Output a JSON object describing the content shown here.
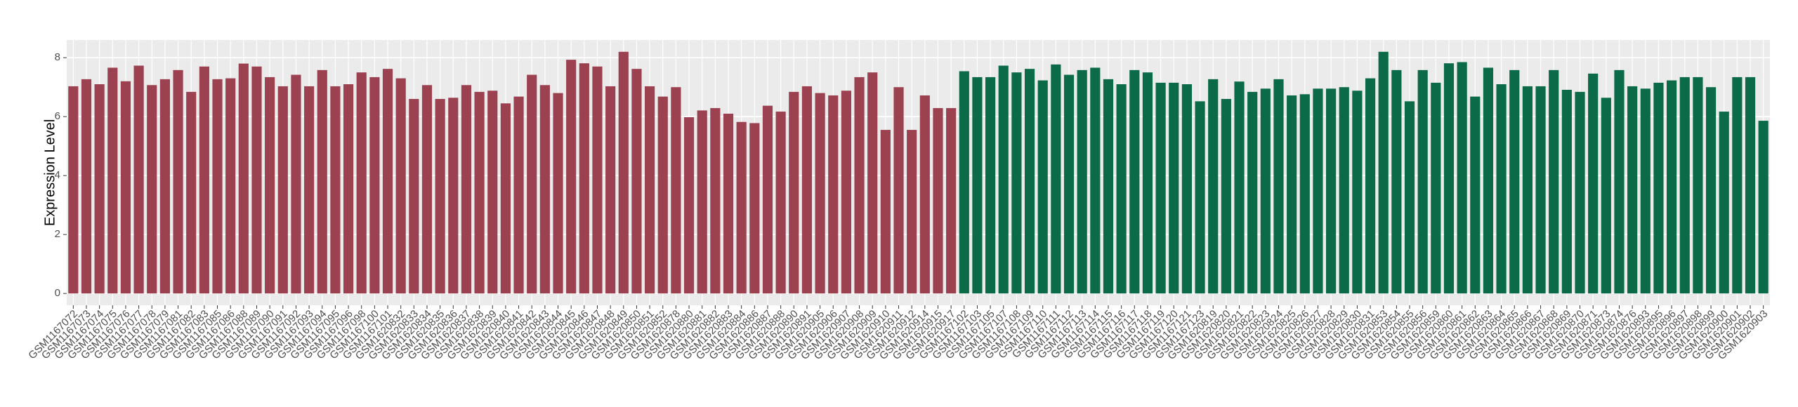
{
  "chart_data": {
    "type": "bar",
    "y_label": "Expression Level",
    "ylim": [
      -0.4,
      8.6
    ],
    "yticks": [
      0,
      2,
      4,
      6,
      8
    ],
    "grid": true,
    "series": [
      {
        "color": "#9b4150",
        "categories": [
          "GSM1167072",
          "GSM1167073",
          "GSM1167074",
          "GSM1167075",
          "GSM1167076",
          "GSM1167077",
          "GSM1167078",
          "GSM1167079",
          "GSM1167081",
          "GSM1167082",
          "GSM1167083",
          "GSM1167085",
          "GSM1167086",
          "GSM1167088",
          "GSM1167089",
          "GSM1167090",
          "GSM1167091",
          "GSM1167092",
          "GSM1167093",
          "GSM1167094",
          "GSM1167095",
          "GSM1167096",
          "GSM1167098",
          "GSM1167100",
          "GSM1167101",
          "GSM1620832",
          "GSM1620833",
          "GSM1620834",
          "GSM1620835",
          "GSM1620836",
          "GSM1620837",
          "GSM1620838",
          "GSM1620839",
          "GSM1620840",
          "GSM1620841",
          "GSM1620842",
          "GSM1620843",
          "GSM1620844",
          "GSM1620845",
          "GSM1620846",
          "GSM1620847",
          "GSM1620848",
          "GSM1620849",
          "GSM1620850",
          "GSM1620851",
          "GSM1620852",
          "GSM1620878",
          "GSM1620880",
          "GSM1620881",
          "GSM1620882",
          "GSM1620883",
          "GSM1620884",
          "GSM1620886",
          "GSM1620887",
          "GSM1620888",
          "GSM1620890",
          "GSM1620891",
          "GSM1620905",
          "GSM1620906",
          "GSM1620907",
          "GSM1620908",
          "GSM1620909",
          "GSM1620910",
          "GSM1620911",
          "GSM1620912",
          "GSM1620914",
          "GSM1620915",
          "GSM1620917"
        ],
        "values": [
          7.03,
          7.27,
          7.1,
          7.66,
          7.2,
          7.73,
          7.07,
          7.27,
          7.58,
          6.84,
          7.7,
          7.27,
          7.3,
          7.8,
          7.7,
          7.34,
          7.03,
          7.42,
          7.03,
          7.58,
          7.03,
          7.1,
          7.5,
          7.34,
          7.62,
          7.3,
          6.6,
          7.07,
          6.6,
          6.64,
          7.07,
          6.84,
          6.88,
          6.45,
          6.68,
          7.42,
          7.07,
          6.8,
          7.93,
          7.81,
          7.7,
          7.03,
          8.2,
          7.62,
          7.03,
          6.68,
          7.0,
          5.98,
          6.21,
          6.29,
          6.1,
          5.82,
          5.78,
          6.37,
          6.17,
          6.84,
          7.03,
          6.8,
          6.72,
          6.88,
          7.34,
          7.5,
          5.55,
          7.0,
          5.55,
          6.72,
          6.29,
          6.29
        ]
      },
      {
        "color": "#0b6a47",
        "categories": [
          "GSM1167102",
          "GSM1167103",
          "GSM1167105",
          "GSM1167107",
          "GSM1167108",
          "GSM1167109",
          "GSM1167110",
          "GSM1167111",
          "GSM1167112",
          "GSM1167113",
          "GSM1167114",
          "GSM1167115",
          "GSM1167116",
          "GSM1167117",
          "GSM1167118",
          "GSM1167119",
          "GSM1167120",
          "GSM1167121",
          "GSM1167123",
          "GSM1620819",
          "GSM1620820",
          "GSM1620821",
          "GSM1620822",
          "GSM1620823",
          "GSM1620824",
          "GSM1620825",
          "GSM1620826",
          "GSM1620827",
          "GSM1620828",
          "GSM1620829",
          "GSM1620830",
          "GSM1620831",
          "GSM1620853",
          "GSM1620854",
          "GSM1620855",
          "GSM1620856",
          "GSM1620859",
          "GSM1620860",
          "GSM1620861",
          "GSM1620862",
          "GSM1620863",
          "GSM1620864",
          "GSM1620865",
          "GSM1620866",
          "GSM1620867",
          "GSM1620868",
          "GSM1620869",
          "GSM1620870",
          "GSM1620871",
          "GSM1620873",
          "GSM1620874",
          "GSM1620876",
          "GSM1620893",
          "GSM1620895",
          "GSM1620896",
          "GSM1620897",
          "GSM1620898",
          "GSM1620899",
          "GSM1620900",
          "GSM1620901",
          "GSM1620902",
          "GSM1620903"
        ],
        "values": [
          7.54,
          7.34,
          7.34,
          7.73,
          7.5,
          7.62,
          7.23,
          7.77,
          7.42,
          7.58,
          7.66,
          7.27,
          7.1,
          7.58,
          7.5,
          7.15,
          7.15,
          7.1,
          6.52,
          7.27,
          6.6,
          7.19,
          6.84,
          6.95,
          7.27,
          6.72,
          6.76,
          6.95,
          6.95,
          7.0,
          6.88,
          7.3,
          8.2,
          7.58,
          6.52,
          7.58,
          7.15,
          7.81,
          7.85,
          6.68,
          7.66,
          7.1,
          7.58,
          7.03,
          7.03,
          7.58,
          6.91,
          6.84,
          7.46,
          6.64,
          7.58,
          7.03,
          6.95,
          7.15,
          7.23,
          7.34,
          7.34,
          7.0,
          6.17,
          7.34,
          7.34,
          5.86
        ]
      }
    ]
  }
}
